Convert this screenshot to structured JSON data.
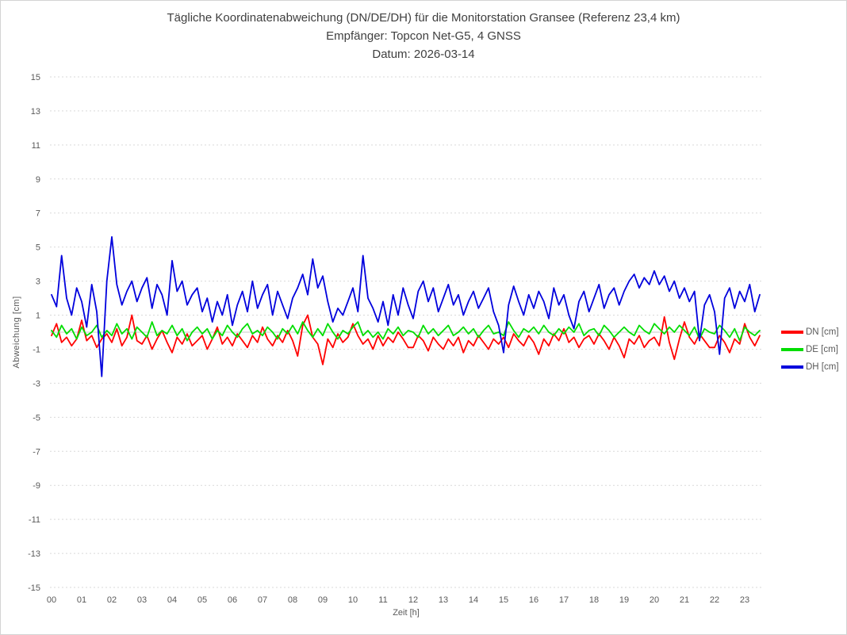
{
  "chart_data": {
    "type": "line",
    "title": "Tägliche Koordinatenabweichung (DN/DE/DH) für die Monitorstation Gransee (Referenz 23,4 km)",
    "subtitle": "Empfänger: Topcon Net-G5, 4 GNSS",
    "date_line": "Datum: 2026-03-14",
    "xlabel": "Zeit [h]",
    "ylabel": "Abweichung [cm]",
    "ylim": [
      -15,
      15
    ],
    "y_ticks": [
      -15,
      -13,
      -11,
      -9,
      -7,
      -5,
      -3,
      -1,
      1,
      3,
      5,
      7,
      9,
      11,
      13,
      15
    ],
    "x_ticks": [
      "00",
      "01",
      "02",
      "03",
      "04",
      "05",
      "06",
      "07",
      "08",
      "09",
      "10",
      "11",
      "12",
      "13",
      "14",
      "15",
      "16",
      "17",
      "18",
      "19",
      "20",
      "21",
      "22",
      "23"
    ],
    "x_start_hour": 0,
    "x_interval_minutes": 10,
    "grid": "horizontal-dotted",
    "grid_color": "#d9d9d9",
    "zero_line_color": "#c8c8c8",
    "legend_position": "right",
    "series": [
      {
        "name": "DN [cm]",
        "color": "#ff0000",
        "values": [
          -0.2,
          0.5,
          -0.6,
          -0.3,
          -0.8,
          -0.4,
          0.7,
          -0.5,
          -0.2,
          -0.9,
          -0.4,
          -0.1,
          -0.6,
          0.2,
          -0.8,
          -0.3,
          1.0,
          -0.5,
          -0.7,
          -0.2,
          -1.0,
          -0.4,
          0.1,
          -0.6,
          -1.2,
          -0.3,
          -0.7,
          -0.1,
          -0.8,
          -0.5,
          -0.2,
          -1.0,
          -0.4,
          0.3,
          -0.7,
          -0.3,
          -0.8,
          -0.1,
          -0.5,
          -0.9,
          -0.2,
          -0.6,
          0.3,
          -0.4,
          -0.8,
          -0.2,
          -0.6,
          0.1,
          -0.5,
          -1.4,
          0.4,
          1.0,
          -0.3,
          -0.7,
          -1.9,
          -0.4,
          -0.9,
          -0.1,
          -0.6,
          -0.3,
          0.5,
          -0.2,
          -0.7,
          -0.4,
          -1.0,
          -0.2,
          -0.8,
          -0.3,
          -0.6,
          0.0,
          -0.4,
          -0.9,
          -0.9,
          -0.2,
          -0.5,
          -1.1,
          -0.3,
          -0.7,
          -1.0,
          -0.4,
          -0.8,
          -0.3,
          -1.2,
          -0.5,
          -0.8,
          -0.2,
          -0.6,
          -1.0,
          -0.4,
          -0.7,
          -0.3,
          -0.9,
          -0.1,
          -0.5,
          -0.8,
          -0.2,
          -0.6,
          -1.3,
          -0.4,
          -0.8,
          -0.1,
          -0.5,
          0.2,
          -0.6,
          -0.3,
          -0.9,
          -0.4,
          -0.2,
          -0.7,
          -0.1,
          -0.5,
          -1.0,
          -0.3,
          -0.8,
          -1.5,
          -0.4,
          -0.7,
          -0.2,
          -0.9,
          -0.5,
          -0.3,
          -0.8,
          0.9,
          -0.6,
          -1.6,
          -0.4,
          0.6,
          -0.3,
          -0.7,
          -0.1,
          -0.5,
          -0.9,
          -0.9,
          -0.2,
          -0.6,
          -1.2,
          -0.4,
          -0.7,
          0.5,
          -0.3,
          -0.8,
          -0.2
        ]
      },
      {
        "name": "DE [cm]",
        "color": "#00dd00",
        "values": [
          0.1,
          -0.3,
          0.4,
          -0.1,
          0.2,
          -0.4,
          0.3,
          -0.2,
          0.0,
          0.4,
          -0.3,
          0.1,
          -0.2,
          0.5,
          -0.1,
          0.2,
          -0.4,
          0.3,
          0.0,
          -0.3,
          0.6,
          -0.2,
          0.1,
          -0.1,
          0.4,
          -0.2,
          0.2,
          -0.5,
          0.0,
          0.3,
          -0.1,
          0.2,
          -0.4,
          0.1,
          -0.2,
          0.4,
          0.0,
          -0.3,
          0.2,
          0.5,
          -0.1,
          0.1,
          -0.2,
          0.3,
          0.0,
          -0.4,
          0.2,
          -0.1,
          0.4,
          -0.1,
          0.6,
          0.1,
          -0.3,
          0.2,
          -0.2,
          0.5,
          0.0,
          -0.4,
          0.1,
          -0.1,
          0.3,
          0.6,
          -0.2,
          0.1,
          -0.3,
          0.0,
          -0.4,
          0.2,
          -0.1,
          0.3,
          -0.2,
          0.1,
          0.0,
          -0.3,
          0.4,
          -0.1,
          0.2,
          -0.2,
          0.1,
          0.4,
          -0.2,
          0.0,
          0.3,
          -0.1,
          0.2,
          -0.3,
          0.1,
          0.4,
          -0.1,
          0.0,
          -0.2,
          0.6,
          0.1,
          -0.3,
          0.2,
          0.0,
          0.3,
          -0.1,
          0.4,
          0.0,
          -0.2,
          0.2,
          -0.1,
          0.3,
          0.0,
          0.5,
          -0.2,
          0.1,
          0.2,
          -0.2,
          0.4,
          0.1,
          -0.3,
          0.0,
          0.3,
          0.0,
          -0.2,
          0.4,
          0.1,
          -0.1,
          0.5,
          0.2,
          -0.1,
          0.3,
          0.0,
          0.4,
          0.1,
          -0.2,
          0.3,
          -0.4,
          0.2,
          0.0,
          -0.1,
          0.4,
          0.1,
          -0.3,
          0.2,
          -0.5,
          0.3,
          0.0,
          -0.2,
          0.1
        ]
      },
      {
        "name": "DH [cm]",
        "color": "#0000dd",
        "values": [
          2.2,
          1.5,
          4.5,
          2.0,
          1.0,
          2.6,
          1.8,
          0.3,
          2.8,
          1.2,
          -2.6,
          3.0,
          5.6,
          2.8,
          1.6,
          2.4,
          3.0,
          1.8,
          2.6,
          3.2,
          1.4,
          2.8,
          2.2,
          1.0,
          4.2,
          2.4,
          3.0,
          1.6,
          2.2,
          2.6,
          1.2,
          2.0,
          0.6,
          1.8,
          1.0,
          2.2,
          0.4,
          1.6,
          2.4,
          1.2,
          3.0,
          1.4,
          2.2,
          2.8,
          1.0,
          2.4,
          1.6,
          0.8,
          2.0,
          2.6,
          3.4,
          2.2,
          4.3,
          2.6,
          3.3,
          1.8,
          0.6,
          1.4,
          1.0,
          1.8,
          2.6,
          1.2,
          4.5,
          2.0,
          1.4,
          0.6,
          1.8,
          0.4,
          2.2,
          1.0,
          2.6,
          1.6,
          0.8,
          2.4,
          3.0,
          1.8,
          2.6,
          1.2,
          2.0,
          2.8,
          1.6,
          2.2,
          1.0,
          1.8,
          2.4,
          1.4,
          2.0,
          2.6,
          1.2,
          0.4,
          -1.2,
          1.6,
          2.7,
          1.8,
          1.0,
          2.2,
          1.4,
          2.4,
          1.8,
          0.8,
          2.6,
          1.6,
          2.2,
          1.0,
          0.2,
          1.8,
          2.4,
          1.2,
          2.0,
          2.8,
          1.4,
          2.2,
          2.6,
          1.6,
          2.4,
          3.0,
          3.4,
          2.6,
          3.2,
          2.8,
          3.6,
          2.8,
          3.3,
          2.4,
          3.0,
          2.0,
          2.6,
          1.8,
          2.4,
          -0.5,
          1.6,
          2.2,
          1.2,
          -1.3,
          2.0,
          2.6,
          1.4,
          2.4,
          1.8,
          2.8,
          1.2,
          2.2
        ]
      }
    ]
  }
}
